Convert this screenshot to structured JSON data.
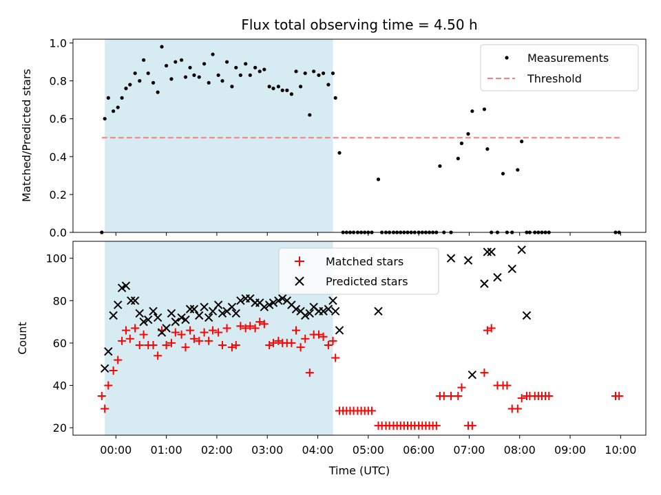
{
  "chart_data": {
    "title": "Flux total observing time = 4.50 h",
    "xlabel": "Time (UTC)",
    "x_unit": "hours since 00:00 UTC",
    "xlim": [
      -0.85,
      10.5
    ],
    "x_ticks": [
      {
        "value": 0,
        "label": "00:00"
      },
      {
        "value": 1,
        "label": "01:00"
      },
      {
        "value": 2,
        "label": "02:00"
      },
      {
        "value": 3,
        "label": "03:00"
      },
      {
        "value": 4,
        "label": "04:00"
      },
      {
        "value": 5,
        "label": "05:00"
      },
      {
        "value": 6,
        "label": "06:00"
      },
      {
        "value": 7,
        "label": "07:00"
      },
      {
        "value": 8,
        "label": "08:00"
      },
      {
        "value": 9,
        "label": "09:00"
      },
      {
        "value": 10,
        "label": "10:00"
      }
    ],
    "shaded_span": {
      "x": [
        -0.22,
        4.3
      ],
      "color": "#add8e6"
    },
    "top": {
      "type": "scatter",
      "ylabel": "Matched/Predicted stars",
      "ylim": [
        0,
        1.02
      ],
      "y_ticks": [
        {
          "value": 0.0,
          "label": "0.0"
        },
        {
          "value": 0.2,
          "label": "0.2"
        },
        {
          "value": 0.4,
          "label": "0.4"
        },
        {
          "value": 0.6,
          "label": "0.6"
        },
        {
          "value": 0.8,
          "label": "0.8"
        },
        {
          "value": 1.0,
          "label": "1.0"
        }
      ],
      "legend": {
        "position": "top-right",
        "entries": [
          "Measurements",
          "Threshold"
        ]
      },
      "threshold": {
        "value": 0.5,
        "x": [
          -0.28,
          9.98
        ],
        "color": "#ff7f7f",
        "label": "Threshold"
      },
      "measurements": {
        "label": "Measurements",
        "color": "#000000",
        "x": [
          -0.28,
          -0.22,
          -0.15,
          -0.05,
          0.04,
          0.12,
          0.2,
          0.28,
          0.38,
          0.47,
          0.55,
          0.64,
          0.74,
          0.83,
          0.91,
          1.0,
          1.1,
          1.18,
          1.3,
          1.38,
          1.47,
          1.55,
          1.65,
          1.75,
          1.84,
          1.92,
          2.03,
          2.11,
          2.2,
          2.3,
          2.38,
          2.47,
          2.57,
          2.66,
          2.76,
          2.85,
          2.94,
          3.04,
          3.12,
          3.22,
          3.3,
          3.39,
          3.48,
          3.57,
          3.66,
          3.75,
          3.84,
          3.92,
          4.02,
          4.11,
          4.21,
          4.3,
          4.35,
          4.43,
          4.5,
          4.57,
          4.64,
          4.71,
          4.79,
          4.86,
          4.93,
          5.0,
          5.07,
          5.2,
          5.27,
          5.35,
          5.42,
          5.5,
          5.57,
          5.64,
          5.71,
          5.78,
          5.85,
          5.92,
          6.0,
          6.07,
          6.14,
          6.21,
          6.28,
          6.35,
          6.42,
          6.5,
          6.64,
          6.78,
          6.85,
          6.98,
          7.06,
          7.3,
          7.36,
          7.44,
          7.56,
          7.67,
          7.75,
          7.85,
          7.96,
          8.04,
          8.14,
          8.2,
          8.3,
          8.37,
          8.44,
          8.51,
          8.58,
          9.9,
          9.97
        ],
        "y": [
          0.0,
          0.6,
          0.71,
          0.64,
          0.66,
          0.71,
          0.76,
          0.78,
          0.84,
          0.8,
          0.91,
          0.84,
          0.79,
          0.74,
          0.98,
          0.88,
          0.81,
          0.9,
          0.91,
          0.82,
          0.87,
          0.83,
          0.82,
          0.89,
          0.79,
          0.94,
          0.83,
          0.8,
          0.9,
          0.77,
          0.87,
          0.83,
          0.89,
          0.83,
          0.87,
          0.85,
          0.86,
          0.77,
          0.76,
          0.77,
          0.75,
          0.75,
          0.73,
          0.85,
          0.77,
          0.84,
          0.62,
          0.85,
          0.83,
          0.84,
          0.78,
          0.84,
          0.71,
          0.42,
          0.0,
          0.0,
          0.0,
          0.0,
          0.0,
          0.0,
          0.0,
          0.0,
          0.0,
          0.28,
          0.0,
          0.0,
          0.0,
          0.0,
          0.0,
          0.0,
          0.0,
          0.0,
          0.0,
          0.0,
          0.0,
          0.0,
          0.0,
          0.0,
          0.0,
          0.0,
          0.35,
          0.0,
          0.0,
          0.39,
          0.47,
          0.52,
          0.64,
          0.65,
          0.44,
          0.0,
          0.0,
          0.31,
          0.0,
          0.0,
          0.33,
          0.48,
          0.0,
          0.0,
          0.0,
          0.0,
          0.0,
          0.0,
          0.0,
          0.0,
          0.0
        ]
      }
    },
    "bottom": {
      "type": "scatter",
      "ylabel": "Count",
      "ylim": [
        16.5,
        108
      ],
      "y_ticks": [
        {
          "value": 20,
          "label": "20"
        },
        {
          "value": 40,
          "label": "40"
        },
        {
          "value": 60,
          "label": "60"
        },
        {
          "value": 80,
          "label": "80"
        },
        {
          "value": 100,
          "label": "100"
        }
      ],
      "legend": {
        "position": "top-center",
        "entries": [
          "Matched stars",
          "Predicted stars"
        ]
      },
      "matched": {
        "label": "Matched stars",
        "color": "#ff0000",
        "marker": "+",
        "x": [
          -0.28,
          -0.22,
          -0.15,
          -0.05,
          0.04,
          0.12,
          0.2,
          0.28,
          0.38,
          0.47,
          0.55,
          0.64,
          0.74,
          0.83,
          0.91,
          1.0,
          1.1,
          1.18,
          1.3,
          1.38,
          1.47,
          1.55,
          1.65,
          1.75,
          1.84,
          1.92,
          2.03,
          2.11,
          2.2,
          2.3,
          2.38,
          2.47,
          2.57,
          2.66,
          2.76,
          2.85,
          2.94,
          3.04,
          3.12,
          3.22,
          3.3,
          3.39,
          3.48,
          3.57,
          3.66,
          3.75,
          3.84,
          3.92,
          4.02,
          4.11,
          4.21,
          4.3,
          4.35,
          4.43,
          4.5,
          4.57,
          4.64,
          4.71,
          4.79,
          4.86,
          4.93,
          5.0,
          5.07,
          5.2,
          5.27,
          5.35,
          5.42,
          5.5,
          5.57,
          5.64,
          5.71,
          5.78,
          5.85,
          5.92,
          6.0,
          6.07,
          6.14,
          6.21,
          6.28,
          6.35,
          6.42,
          6.5,
          6.64,
          6.78,
          6.85,
          6.98,
          7.06,
          7.3,
          7.36,
          7.44,
          7.56,
          7.67,
          7.75,
          7.85,
          7.96,
          8.04,
          8.14,
          8.2,
          8.3,
          8.37,
          8.44,
          8.51,
          8.58,
          9.9,
          9.97
        ],
        "y": [
          35,
          29,
          40,
          47,
          52,
          61,
          66,
          62,
          67,
          59,
          64,
          59,
          59,
          54,
          66,
          59,
          60,
          65,
          64,
          58,
          66,
          62,
          61,
          65,
          61,
          66,
          65,
          59,
          67,
          58,
          59,
          68,
          67,
          68,
          67,
          70,
          69,
          59,
          60,
          61,
          60,
          60,
          60,
          66,
          58,
          62,
          46,
          64,
          64,
          63,
          59,
          61,
          53,
          28,
          28,
          28,
          28,
          28,
          28,
          28,
          28,
          28,
          28,
          21,
          21,
          21,
          21,
          21,
          21,
          21,
          21,
          21,
          21,
          21,
          21,
          21,
          21,
          21,
          21,
          21,
          35,
          35,
          35,
          35,
          39,
          21,
          21,
          46,
          66,
          67,
          40,
          40,
          40,
          29,
          29,
          34,
          35,
          35,
          35,
          35,
          35,
          35,
          35,
          35,
          35
        ]
      },
      "predicted": {
        "label": "Predicted stars",
        "color": "#000000",
        "marker": "x",
        "x": [
          -0.22,
          -0.15,
          -0.05,
          0.04,
          0.12,
          0.2,
          0.3,
          0.38,
          0.47,
          0.55,
          0.64,
          0.74,
          0.83,
          0.91,
          1.0,
          1.1,
          1.18,
          1.3,
          1.38,
          1.47,
          1.55,
          1.65,
          1.75,
          1.84,
          1.92,
          2.03,
          2.11,
          2.2,
          2.3,
          2.38,
          2.47,
          2.57,
          2.66,
          2.76,
          2.85,
          2.94,
          3.04,
          3.12,
          3.22,
          3.3,
          3.39,
          3.48,
          3.57,
          3.66,
          3.75,
          3.84,
          3.92,
          4.02,
          4.11,
          4.21,
          4.3,
          4.35,
          4.43,
          5.2,
          6.64,
          6.98,
          7.06,
          7.3,
          7.36,
          7.44,
          7.56,
          7.85,
          8.04,
          8.14
        ],
        "y": [
          48,
          56,
          73,
          78,
          86,
          87,
          80,
          80,
          74,
          70,
          71,
          75,
          72,
          65,
          67,
          74,
          70,
          72,
          71,
          76,
          76,
          73,
          77,
          72,
          75,
          78,
          74,
          75,
          77,
          74,
          80,
          81,
          81,
          79,
          79,
          77,
          78,
          79,
          80,
          81,
          80,
          78,
          76,
          75,
          73,
          74,
          77,
          75,
          75,
          76,
          80,
          75,
          66,
          75,
          100,
          99,
          45,
          88,
          103,
          103,
          91,
          95,
          104,
          73
        ]
      }
    }
  }
}
